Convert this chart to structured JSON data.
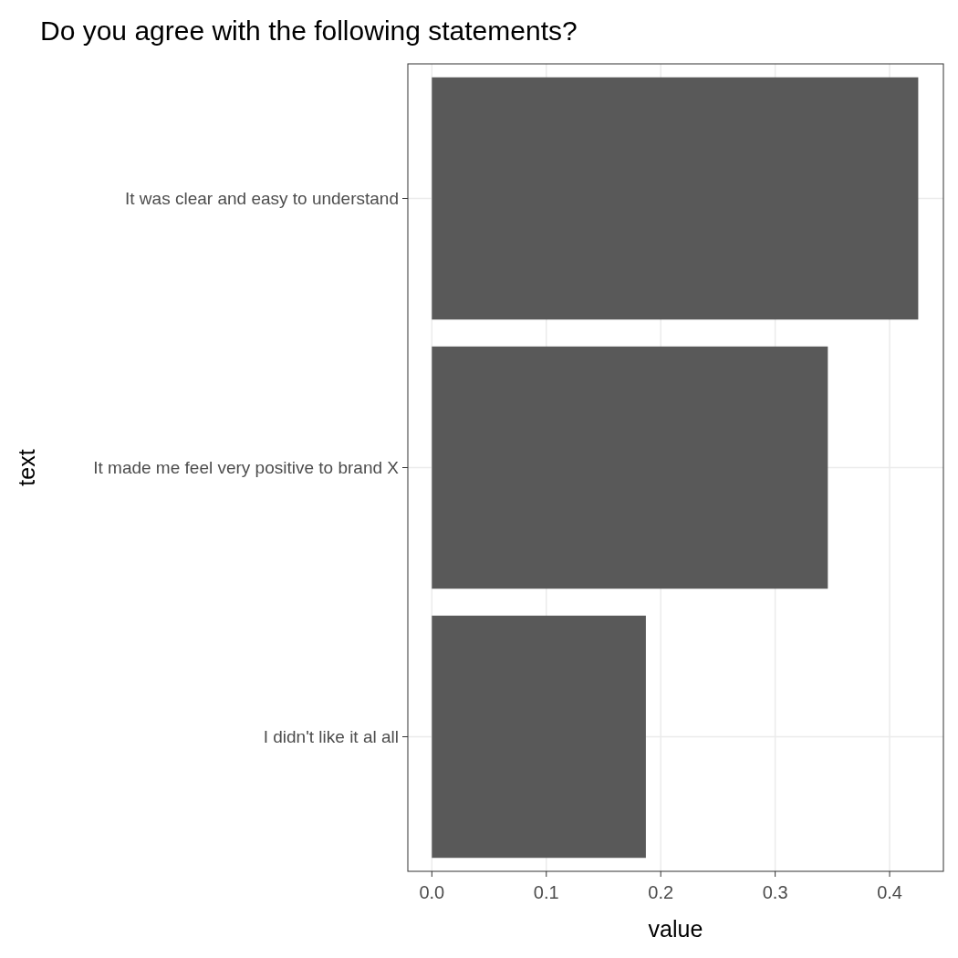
{
  "chart_data": {
    "type": "bar",
    "orientation": "horizontal",
    "title": "Do you agree with the following statements?",
    "xlabel": "value",
    "ylabel": "text",
    "categories": [
      "It was clear and easy to understand",
      "It made me feel very positive to brand X",
      "I didn't like it al all"
    ],
    "values": [
      0.425,
      0.346,
      0.187
    ],
    "color": "#595959",
    "xlim": [
      -0.021,
      0.447
    ],
    "xticks": [
      {
        "value": 0,
        "label": "0.0"
      },
      {
        "value": 0.1,
        "label": "0.1"
      },
      {
        "value": 0.2,
        "label": "0.2"
      },
      {
        "value": 0.3,
        "label": "0.3"
      },
      {
        "value": 0.4,
        "label": "0.4"
      }
    ],
    "grid": true
  }
}
